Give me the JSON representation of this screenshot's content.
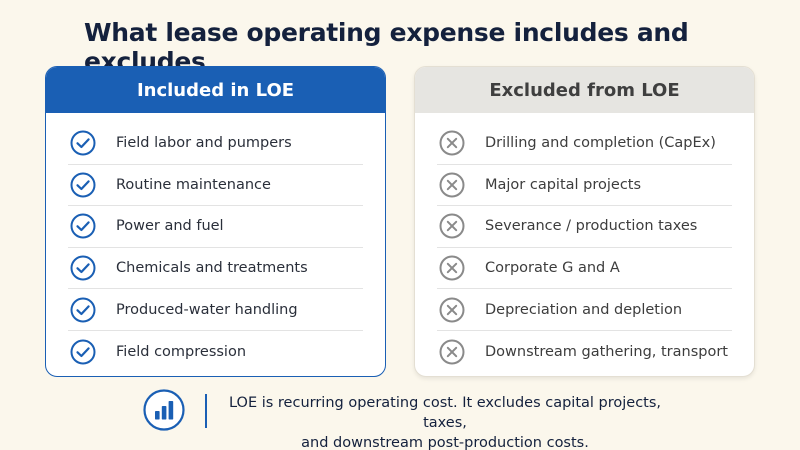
{
  "title": "What lease operating expense includes and excludes",
  "included": {
    "heading": "Included in LOE",
    "items": [
      "Field labor and pumpers",
      "Routine maintenance",
      "Power and fuel",
      "Chemicals and treatments",
      "Produced-water handling",
      "Field compression"
    ]
  },
  "excluded": {
    "heading": "Excluded from LOE",
    "items": [
      "Drilling and completion (CapEx)",
      "Major capital projects",
      "Severance / production taxes",
      "Corporate G and A",
      "Depreciation and depletion",
      "Downstream gathering, transport"
    ]
  },
  "footer": {
    "icon": "bar-chart-icon",
    "line1": "LOE is recurring operating cost. It excludes capital projects, taxes,",
    "line2": "and downstream post-production costs."
  },
  "colors": {
    "accent": "#1a5fb4",
    "background": "#fbf7ec",
    "excluded_icon": "#8a8a8a"
  }
}
